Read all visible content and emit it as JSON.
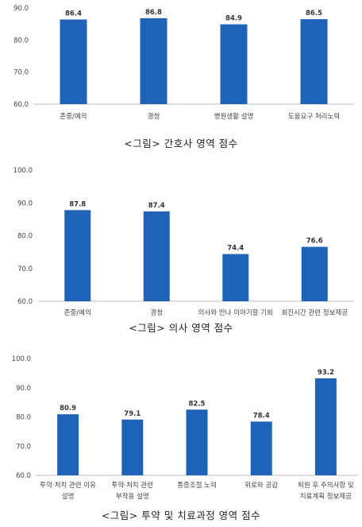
{
  "chart_data": [
    {
      "type": "bar",
      "categories": [
        [
          "존중/예의"
        ],
        [
          "경청"
        ],
        [
          "병원생활 설명"
        ],
        [
          "도움요구 처리노력"
        ]
      ],
      "values": [
        86.4,
        86.8,
        84.9,
        86.5
      ],
      "value_labels": [
        "86.4",
        "86.8",
        "84.9",
        "86.5"
      ],
      "ylim": [
        60,
        90
      ],
      "y_ticks": [
        "60.0",
        "70.0",
        "80.0",
        "90.0"
      ],
      "grid": false,
      "color": "#1f63b8",
      "caption": "<그림> 간호사 영역 점수"
    },
    {
      "type": "bar",
      "categories": [
        [
          "존중/예의"
        ],
        [
          "경청"
        ],
        [
          "의사와 만나 이야기할 기회"
        ],
        [
          "회진시간 관련 정보제공"
        ]
      ],
      "values": [
        87.8,
        87.4,
        74.4,
        76.6
      ],
      "value_labels": [
        "87.8",
        "87.4",
        "74.4",
        "76.6"
      ],
      "ylim": [
        60,
        100
      ],
      "y_ticks": [
        "60.0",
        "70.0",
        "80.0",
        "90.0",
        "100.0"
      ],
      "grid": false,
      "color": "#1f63b8",
      "caption": "<그림> 의사 영역 점수"
    },
    {
      "type": "bar",
      "categories": [
        [
          "투약·처치 관련 이유",
          "설명"
        ],
        [
          "투약·처치 관련",
          "부작용 설명"
        ],
        [
          "통증조절 노력"
        ],
        [
          "위로와 공감"
        ],
        [
          "퇴원 후 주의사항 및",
          "치료계획 정보제공"
        ]
      ],
      "values": [
        80.9,
        79.1,
        82.5,
        78.4,
        93.2
      ],
      "value_labels": [
        "80.9",
        "79.1",
        "82.5",
        "78.4",
        "93.2"
      ],
      "ylim": [
        60,
        100
      ],
      "y_ticks": [
        "60.0",
        "70.0",
        "80.0",
        "90.0",
        "100.0"
      ],
      "grid": false,
      "color": "#1f63b8",
      "caption": "<그림> 투약 및 치료과정 영역 점수"
    }
  ]
}
